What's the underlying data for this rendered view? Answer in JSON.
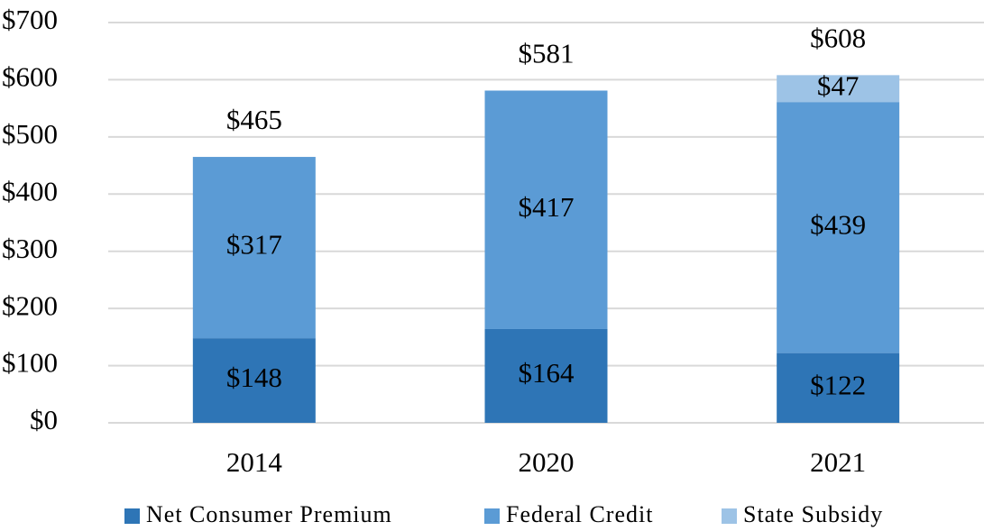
{
  "chart_data": {
    "type": "stacked_bar",
    "categories": [
      "2014",
      "2020",
      "2021"
    ],
    "series": [
      {
        "name": "Net Consumer Premium",
        "color": "#2e75b6",
        "values": [
          148,
          164,
          122
        ],
        "value_labels": [
          "$148",
          "$164",
          "$122"
        ]
      },
      {
        "name": "Federal Credit",
        "color": "#5b9bd5",
        "values": [
          317,
          417,
          439
        ],
        "value_labels": [
          "$317",
          "$417",
          "$439"
        ]
      },
      {
        "name": "State Subsidy",
        "color": "#9dc3e6",
        "values": [
          0,
          0,
          47
        ],
        "value_labels": [
          null,
          null,
          "$47"
        ]
      }
    ],
    "totals": [
      465,
      581,
      608
    ],
    "total_labels": [
      "$465",
      "$581",
      "$608"
    ],
    "ylim": [
      0,
      700
    ],
    "yticks": [
      {
        "value": 0,
        "label": "$0"
      },
      {
        "value": 100,
        "label": "$100"
      },
      {
        "value": 200,
        "label": "$200"
      },
      {
        "value": 300,
        "label": "$300"
      },
      {
        "value": 400,
        "label": "$400"
      },
      {
        "value": 500,
        "label": "$500"
      },
      {
        "value": 600,
        "label": "$600"
      },
      {
        "value": 700,
        "label": "$700"
      }
    ],
    "grid": true,
    "legend": "bottom"
  }
}
